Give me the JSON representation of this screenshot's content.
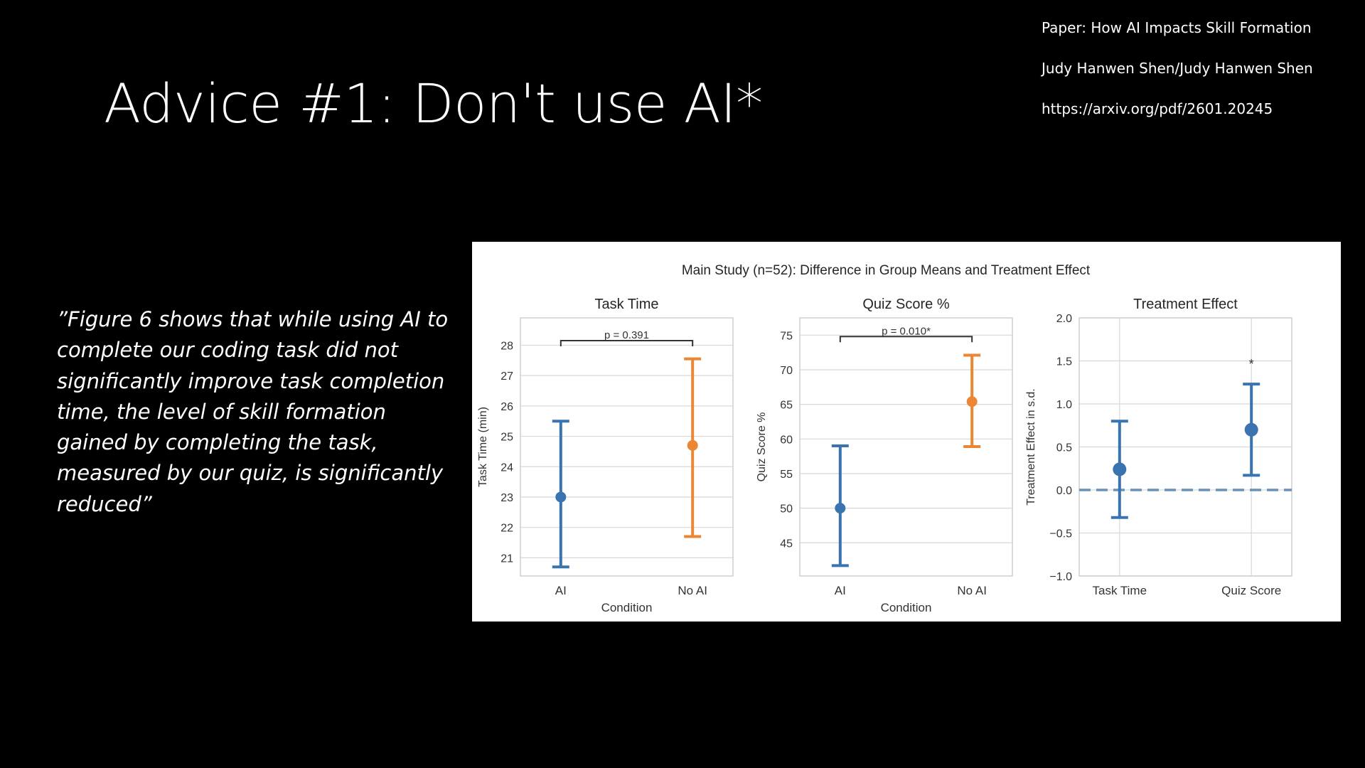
{
  "slide": {
    "title": "Advice #1: Don't use AI*",
    "quote": "”Figure 6 shows that while using AI to complete our coding task did not significantly improve task completion time, the level of skill formation gained by completing the task, measured by our quiz, is significantly reduced”"
  },
  "reference": {
    "paper": "Paper: How AI Impacts Skill Formation",
    "authors": "Judy Hanwen Shen/Judy Hanwen Shen",
    "url": "https://arxiv.org/pdf/2601.20245"
  },
  "figure_title": "Main Study (n=52): Difference in Group Means and Treatment Effect",
  "colors": {
    "ai": "#3a74b0",
    "no_ai": "#ea8634",
    "grid": "#d8d8d8",
    "dashed": "#6a92b8"
  },
  "chart_data": [
    {
      "type": "scatter",
      "title": "Task Time",
      "xlabel": "Condition",
      "ylabel": "Task Time (min)",
      "categories": [
        "AI",
        "No AI"
      ],
      "values": [
        23.0,
        24.7
      ],
      "ci_lower": [
        20.7,
        21.7
      ],
      "ci_upper": [
        25.5,
        27.55
      ],
      "ylim": [
        20.4,
        28.9
      ],
      "yticks": [
        21,
        22,
        23,
        24,
        25,
        26,
        27,
        28
      ],
      "annotation": "p = 0.391",
      "annotation_y": 28.15,
      "grid": true
    },
    {
      "type": "scatter",
      "title": "Quiz Score %",
      "xlabel": "Condition",
      "ylabel": "Quiz Score %",
      "categories": [
        "AI",
        "No AI"
      ],
      "values": [
        50.0,
        65.4
      ],
      "ci_lower": [
        41.7,
        58.9
      ],
      "ci_upper": [
        59.0,
        72.1
      ],
      "ylim": [
        40.2,
        77.5
      ],
      "yticks": [
        45,
        50,
        55,
        60,
        65,
        70,
        75
      ],
      "annotation": "p = 0.010*",
      "annotation_y": 74.8,
      "grid": true
    },
    {
      "type": "scatter",
      "title": "Treatment Effect",
      "xlabel": "",
      "ylabel": "Treatment Effect in s.d.",
      "categories": [
        "Task Time",
        "Quiz Score"
      ],
      "values": [
        0.24,
        0.7
      ],
      "ci_lower": [
        -0.32,
        0.17
      ],
      "ci_upper": [
        0.8,
        1.23
      ],
      "ylim": [
        -1.0,
        2.0
      ],
      "yticks": [
        -1.0,
        -0.5,
        0.0,
        0.5,
        1.0,
        1.5,
        2.0
      ],
      "ytick_labels": [
        "−1.0",
        "−0.5",
        "0.0",
        "0.5",
        "1.0",
        "1.5",
        "2.0"
      ],
      "reference_line": 0.0,
      "significance_marks": [
        "",
        "*"
      ],
      "grid": true
    }
  ]
}
